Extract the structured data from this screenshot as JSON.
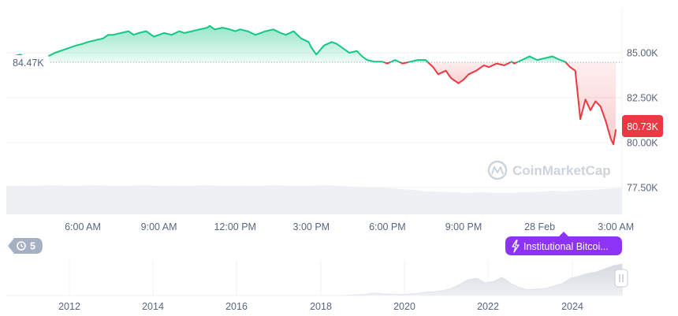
{
  "chart_data": {
    "type": "area",
    "baseline": {
      "value": 84.47,
      "label": "84.47K"
    },
    "current": {
      "value": 80.73,
      "label": "80.73K"
    },
    "ylim": [
      76,
      87.5
    ],
    "y_ticks": [
      {
        "value": 85.0,
        "label": "85.00K"
      },
      {
        "value": 82.5,
        "label": "82.50K"
      },
      {
        "value": 80.0,
        "label": "80.00K"
      },
      {
        "value": 77.5,
        "label": "77.50K"
      }
    ],
    "x_ticks": [
      {
        "x": 3,
        "label": "6:00 AM"
      },
      {
        "x": 6,
        "label": "9:00 AM"
      },
      {
        "x": 9,
        "label": "12:00 PM"
      },
      {
        "x": 12,
        "label": "3:00 PM"
      },
      {
        "x": 15,
        "label": "6:00 PM"
      },
      {
        "x": 18,
        "label": "9:00 PM"
      },
      {
        "x": 21,
        "label": "28 Feb"
      },
      {
        "x": 24,
        "label": "3:00 AM"
      }
    ],
    "xlim": [
      0.8,
      24
    ],
    "series": [
      {
        "x": [
          0.8,
          1.0,
          1.2,
          1.4,
          1.6,
          1.8,
          2.0,
          2.2,
          2.5,
          2.8,
          3.0,
          3.2,
          3.5,
          3.8,
          4.0,
          4.2,
          4.5,
          4.8,
          5.0,
          5.2,
          5.5,
          5.8,
          6.0,
          6.2,
          6.5,
          6.8,
          7.0,
          7.3,
          7.6,
          7.9,
          8.0,
          8.2,
          8.5,
          8.8,
          9.0,
          9.2,
          9.5,
          9.8,
          10.0,
          10.2,
          10.5,
          10.8,
          11.0,
          11.3,
          11.6,
          11.9,
          12.0,
          12.2,
          12.5,
          12.8,
          13.0,
          13.2,
          13.5,
          13.8,
          14.0,
          14.2,
          14.5,
          14.8,
          15.0,
          15.3,
          15.6,
          15.9,
          16.2,
          16.5,
          16.8,
          17.0,
          17.3,
          17.5,
          17.8,
          18.0,
          18.2,
          18.5,
          18.8,
          19.0,
          19.3,
          19.6,
          19.9,
          20.0,
          20.3,
          20.6,
          20.9,
          21.2,
          21.5,
          21.8,
          22.0,
          22.2,
          22.4,
          22.6,
          22.8,
          23.0,
          23.2,
          23.4,
          23.6,
          23.8,
          23.9,
          24.0
        ],
        "y": [
          84.6,
          84.8,
          84.9,
          84.7,
          84.5,
          84.5,
          84.8,
          85.0,
          85.2,
          85.4,
          85.5,
          85.6,
          85.7,
          85.8,
          86.0,
          86.0,
          86.1,
          86.2,
          86.0,
          86.1,
          86.2,
          85.9,
          86.0,
          86.1,
          86.0,
          86.2,
          86.1,
          86.2,
          86.3,
          86.4,
          86.5,
          86.3,
          86.4,
          86.3,
          86.2,
          86.3,
          86.2,
          86.0,
          86.1,
          86.2,
          86.3,
          86.1,
          86.0,
          86.2,
          85.8,
          85.6,
          85.3,
          84.9,
          85.4,
          85.6,
          85.5,
          85.3,
          85.0,
          85.1,
          84.8,
          84.6,
          84.5,
          84.5,
          84.4,
          84.6,
          84.4,
          84.5,
          84.6,
          84.6,
          84.2,
          83.8,
          84.0,
          83.6,
          83.3,
          83.5,
          83.8,
          84.0,
          84.3,
          84.2,
          84.4,
          84.3,
          84.5,
          84.4,
          84.6,
          84.8,
          84.6,
          84.7,
          84.8,
          84.6,
          84.5,
          84.2,
          84.0,
          81.3,
          82.4,
          81.8,
          82.3,
          82.0,
          81.2,
          80.2,
          79.9,
          80.73
        ]
      }
    ],
    "volume": [
      0.55,
      0.56,
      0.55,
      0.57,
      0.56,
      0.55,
      0.57,
      0.56,
      0.55,
      0.56,
      0.57,
      0.55,
      0.56,
      0.55,
      0.57,
      0.56,
      0.55,
      0.56,
      0.55,
      0.57,
      0.56,
      0.55,
      0.56,
      0.57,
      0.55,
      0.54,
      0.53,
      0.52,
      0.5,
      0.48,
      0.45,
      0.44,
      0.43,
      0.42,
      0.43,
      0.42,
      0.42,
      0.43,
      0.44,
      0.46,
      0.45,
      0.47,
      0.48,
      0.5,
      0.52
    ],
    "watermark": "CoinMarketCap",
    "history_badge": "5",
    "news_button": "Institutional Bitcoi...",
    "navigator": {
      "x_labels": [
        "2012",
        "2014",
        "2016",
        "2018",
        "2020",
        "2022",
        "2024"
      ],
      "history": [
        0,
        0,
        0,
        0,
        0,
        0,
        0,
        0,
        0,
        0,
        0,
        0,
        0,
        0,
        0,
        0,
        0,
        0,
        0,
        0,
        0,
        0,
        0,
        0,
        0,
        0,
        0,
        0,
        0,
        0,
        0,
        0,
        0,
        0,
        0,
        0,
        0,
        0,
        0,
        0,
        0.01,
        0.02,
        0.03,
        0.08,
        0.05,
        0.04,
        0.03,
        0.04,
        0.06,
        0.1,
        0.12,
        0.15,
        0.22,
        0.35,
        0.5,
        0.55,
        0.4,
        0.45,
        0.58,
        0.38,
        0.25,
        0.18,
        0.2,
        0.22,
        0.3,
        0.38,
        0.55,
        0.62,
        0.7,
        0.75,
        0.85,
        0.95,
        1.0
      ]
    },
    "colors": {
      "up": "#16c784",
      "down": "#ea3943",
      "up_fill": "#16c784",
      "down_fill": "#ea3943",
      "news": "#8c33f5"
    }
  }
}
